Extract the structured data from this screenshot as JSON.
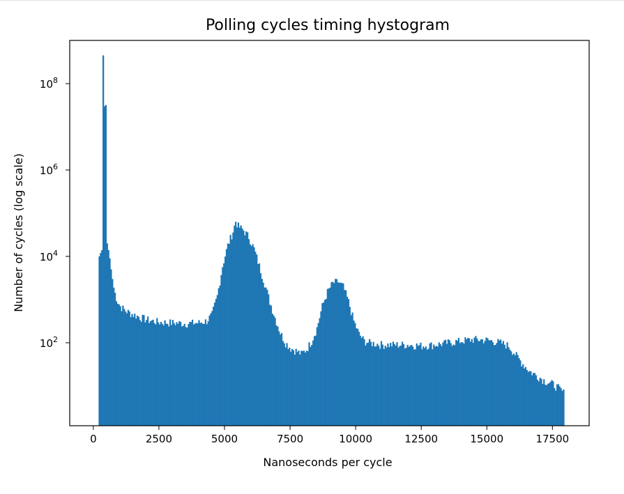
{
  "chart_data": {
    "type": "bar",
    "title": "Polling cycles timing hystogram",
    "xlabel": "Nanoseconds per cycle",
    "ylabel": "Number of cycles (log scale)",
    "yscale": "log",
    "xlim": [
      -900,
      18900
    ],
    "ylim": [
      1.2,
      1000000000
    ],
    "xticks": [
      0,
      2500,
      5000,
      7500,
      10000,
      12500,
      15000,
      17500
    ],
    "xtick_labels": [
      "0",
      "2500",
      "5000",
      "7500",
      "10000",
      "12500",
      "15000",
      "17500"
    ],
    "yticks": [
      100,
      10000,
      1000000,
      100000000
    ],
    "ytick_labels": [
      {
        "base": "10",
        "exp": "2"
      },
      {
        "base": "10",
        "exp": "4"
      },
      {
        "base": "10",
        "exp": "6"
      },
      {
        "base": "10",
        "exp": "8"
      }
    ],
    "bar_color": "#1f77b4",
    "grid": false,
    "legend": false,
    "bin_width": 50,
    "series": [
      {
        "bins": [
          [
            200,
            10000
          ],
          [
            250,
            12000
          ],
          [
            300,
            14000
          ],
          [
            350,
            450000000
          ],
          [
            400,
            30000000
          ],
          [
            450,
            32000000
          ],
          [
            500,
            20000
          ],
          [
            550,
            14000
          ],
          [
            600,
            9000
          ],
          [
            650,
            5000
          ],
          [
            700,
            3000
          ],
          [
            750,
            1900
          ],
          [
            800,
            1400
          ],
          [
            850,
            1100
          ],
          [
            900,
            900
          ],
          [
            1000,
            700
          ],
          [
            1200,
            550
          ],
          [
            1500,
            450
          ],
          [
            1800,
            380
          ],
          [
            2100,
            330
          ],
          [
            2500,
            300
          ],
          [
            3000,
            290
          ],
          [
            3500,
            280
          ],
          [
            4000,
            290
          ],
          [
            4300,
            320
          ],
          [
            4500,
            450
          ],
          [
            4700,
            1200
          ],
          [
            4900,
            6000
          ],
          [
            5100,
            18000
          ],
          [
            5300,
            38000
          ],
          [
            5400,
            65000
          ],
          [
            5500,
            50000
          ],
          [
            5700,
            40000
          ],
          [
            5900,
            28000
          ],
          [
            6100,
            15000
          ],
          [
            6300,
            6000
          ],
          [
            6500,
            2400
          ],
          [
            6700,
            900
          ],
          [
            6900,
            380
          ],
          [
            7100,
            170
          ],
          [
            7300,
            100
          ],
          [
            7500,
            75
          ],
          [
            7700,
            65
          ],
          [
            7900,
            55
          ],
          [
            8100,
            70
          ],
          [
            8300,
            110
          ],
          [
            8500,
            220
          ],
          [
            8700,
            700
          ],
          [
            8900,
            1500
          ],
          [
            9100,
            2400
          ],
          [
            9300,
            2600
          ],
          [
            9500,
            2000
          ],
          [
            9700,
            900
          ],
          [
            9900,
            320
          ],
          [
            10100,
            160
          ],
          [
            10300,
            110
          ],
          [
            10500,
            100
          ],
          [
            11000,
            90
          ],
          [
            11500,
            90
          ],
          [
            12000,
            90
          ],
          [
            12500,
            85
          ],
          [
            13000,
            90
          ],
          [
            13500,
            100
          ],
          [
            14000,
            110
          ],
          [
            14500,
            120
          ],
          [
            15000,
            115
          ],
          [
            15500,
            100
          ],
          [
            15800,
            85
          ],
          [
            16000,
            60
          ],
          [
            16300,
            35
          ],
          [
            16600,
            22
          ],
          [
            16900,
            17
          ],
          [
            17200,
            13
          ],
          [
            17500,
            11
          ],
          [
            17700,
            9
          ],
          [
            17900,
            7
          ]
        ]
      }
    ]
  }
}
